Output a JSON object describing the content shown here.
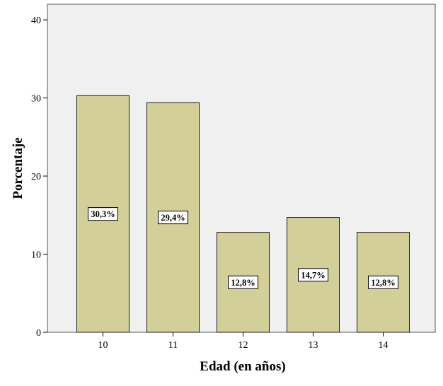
{
  "chart_data": {
    "type": "bar",
    "categories": [
      "10",
      "11",
      "12",
      "13",
      "14"
    ],
    "values": [
      30.3,
      29.4,
      12.8,
      14.7,
      12.8
    ],
    "data_labels": [
      "30,3%",
      "29,4%",
      "12,8%",
      "14,7%",
      "12,8%"
    ],
    "xlabel": "Edad (en años)",
    "ylabel": "Porcentaje",
    "ylim": [
      0,
      42
    ],
    "yticks": [
      0,
      10,
      20,
      30,
      40
    ],
    "grid": false,
    "legend": "none",
    "colors": {
      "bar_fill": "#d3cf98",
      "bar_stroke": "#1a1a1a",
      "plot_background": "#f0f0f0",
      "label_box": "#ffffff"
    }
  }
}
